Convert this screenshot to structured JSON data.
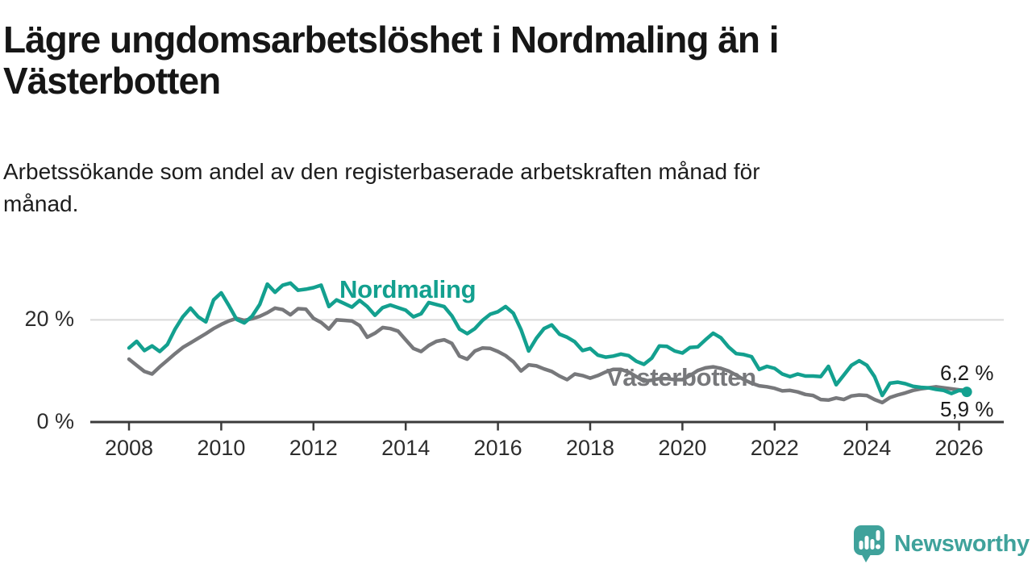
{
  "header": {
    "title": "Lägre ungdomsarbetslöshet i Nordmaling än i Västerbotten",
    "title_lines": [
      "Lägre ungdomsarbetslöshet i Nordmaling än i",
      "Västerbotten"
    ],
    "subtitle": "Arbetssökande som andel av den registerbaserade arbetskraften månad för månad.",
    "subtitle_lines": [
      "Arbetssökande som andel av den registerbaserade arbetskraften månad för",
      "månad."
    ]
  },
  "chart_data": {
    "type": "line",
    "unit": "%",
    "x_start": 2008,
    "x_step_years": 0.166667,
    "x_ticks": [
      2008,
      2010,
      2012,
      2014,
      2016,
      2018,
      2020,
      2022,
      2024,
      2026
    ],
    "y_ticks": [
      {
        "label": "0 %",
        "value": 0
      },
      {
        "label": "20 %",
        "value": 20
      }
    ],
    "gridlines": [
      20
    ],
    "ylim": [
      0,
      28
    ],
    "legend_position": "inline-labels",
    "colors": {
      "axis": "#3b3b3b",
      "gridline": "#d9d9d9",
      "accent_teal": "#13a08f",
      "gray": "#77787b",
      "brand_teal": "#3fa29b"
    },
    "series": [
      {
        "name": "Nordmaling",
        "color": "#13a08f",
        "end_label": "5,9 %",
        "end_value": 5.9,
        "end_dot": true,
        "values": [
          14.5,
          15.8,
          14.0,
          14.9,
          13.8,
          15.2,
          18.2,
          20.6,
          22.3,
          20.6,
          19.6,
          23.9,
          25.3,
          22.8,
          20.1,
          19.4,
          20.7,
          23.0,
          27.0,
          25.4,
          26.8,
          27.2,
          25.8,
          26.0,
          26.3,
          26.8,
          22.6,
          23.9,
          23.2,
          22.5,
          23.8,
          22.6,
          20.9,
          22.4,
          22.9,
          22.4,
          21.9,
          20.6,
          21.2,
          23.4,
          23.0,
          22.6,
          20.8,
          18.2,
          17.3,
          18.3,
          19.9,
          21.1,
          21.6,
          22.6,
          21.3,
          18.1,
          13.9,
          16.4,
          18.3,
          19.0,
          17.2,
          16.6,
          15.7,
          14.0,
          14.4,
          13.1,
          12.7,
          12.9,
          13.3,
          13.0,
          11.9,
          11.3,
          12.5,
          14.9,
          14.8,
          13.9,
          13.5,
          14.6,
          14.7,
          16.1,
          17.4,
          16.5,
          14.7,
          13.4,
          13.2,
          12.8,
          10.3,
          10.9,
          10.5,
          9.4,
          8.9,
          9.4,
          9.0,
          9.0,
          8.9,
          10.9,
          7.3,
          9.2,
          11.1,
          12.0,
          11.1,
          8.9,
          5.2,
          7.6,
          7.8,
          7.5,
          7.0,
          6.8,
          6.7,
          6.4,
          6.2,
          5.6,
          6.2,
          5.9
        ]
      },
      {
        "name": "Västerbotten",
        "color": "#77787b",
        "end_label": "6,2 %",
        "end_value": 6.2,
        "end_dot": false,
        "values": [
          12.3,
          11.1,
          9.9,
          9.4,
          10.8,
          12.1,
          13.4,
          14.6,
          15.5,
          16.4,
          17.3,
          18.3,
          19.1,
          19.8,
          20.3,
          19.9,
          20.2,
          20.7,
          21.4,
          22.3,
          22.0,
          21.0,
          22.2,
          22.1,
          20.3,
          19.5,
          18.2,
          20.0,
          19.9,
          19.8,
          18.9,
          16.6,
          17.4,
          18.5,
          18.3,
          17.8,
          16.1,
          14.4,
          13.8,
          15.0,
          15.8,
          16.1,
          15.4,
          12.9,
          12.3,
          13.9,
          14.5,
          14.4,
          13.8,
          13.0,
          11.8,
          10.0,
          11.2,
          11.0,
          10.4,
          9.9,
          9.0,
          8.3,
          9.4,
          9.1,
          8.6,
          9.1,
          9.8,
          10.3,
          10.3,
          9.8,
          8.9,
          8.0,
          8.2,
          8.5,
          8.5,
          8.3,
          8.3,
          9.1,
          10.1,
          10.6,
          10.8,
          10.5,
          10.0,
          9.2,
          8.3,
          7.6,
          7.1,
          6.9,
          6.6,
          6.1,
          6.2,
          5.9,
          5.4,
          5.2,
          4.4,
          4.3,
          4.7,
          4.4,
          5.1,
          5.3,
          5.2,
          4.4,
          3.8,
          4.8,
          5.3,
          5.7,
          6.2,
          6.5,
          6.7,
          6.9,
          6.7,
          6.5,
          6.3,
          6.2
        ]
      }
    ]
  },
  "footer": {
    "brand": "Newsworthy"
  }
}
